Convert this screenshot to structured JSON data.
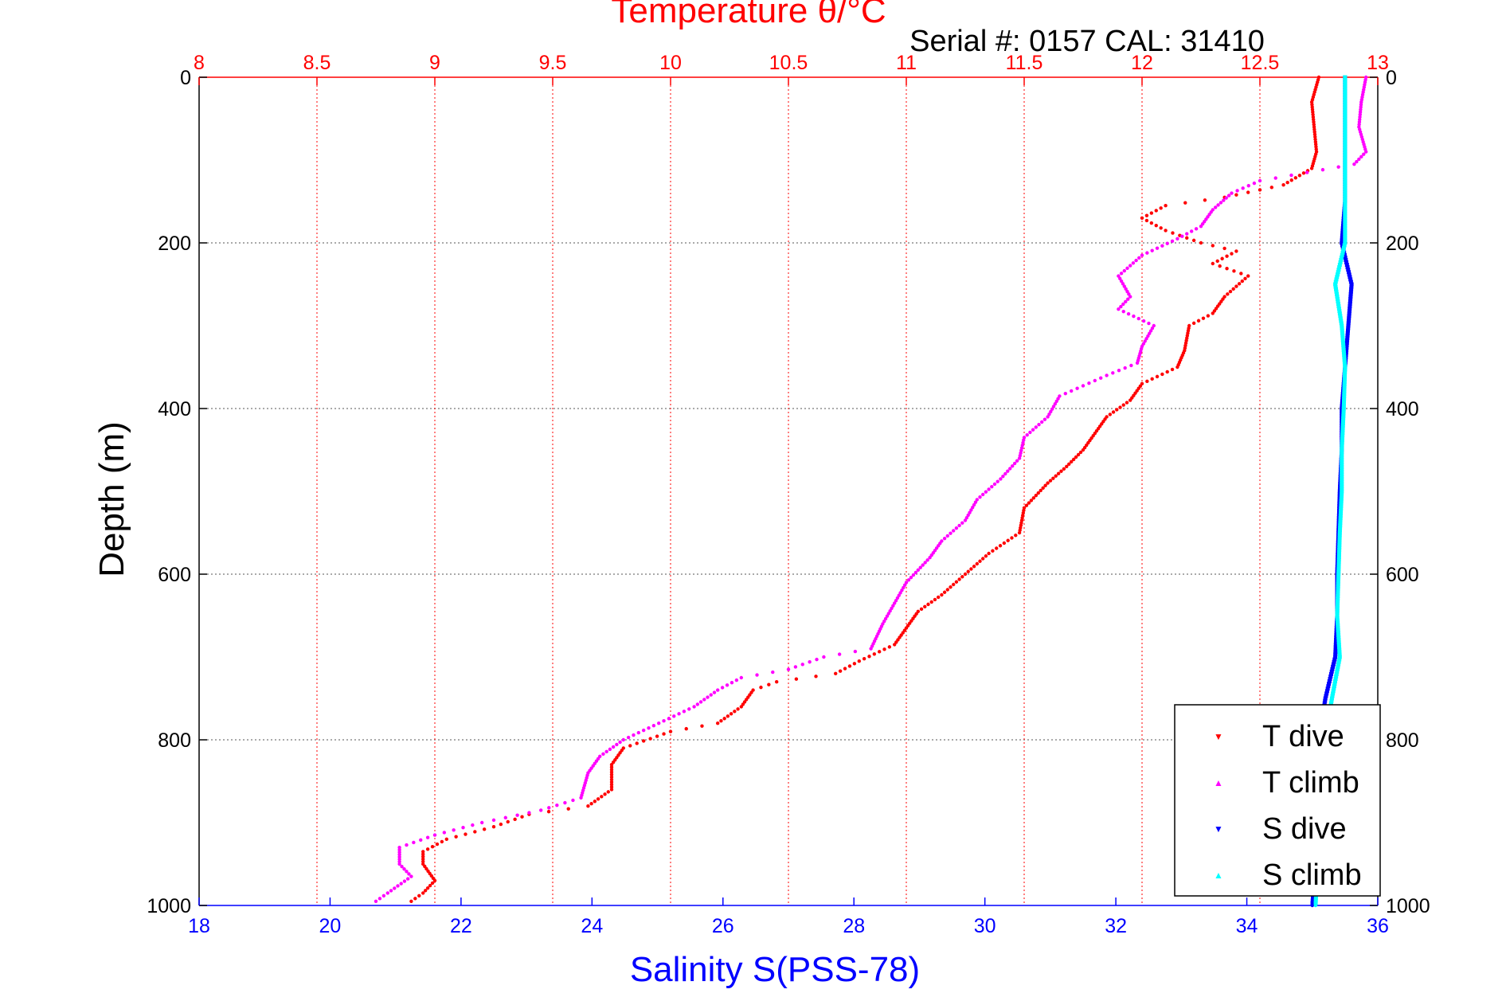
{
  "chart_data": {
    "type": "scatter",
    "title": "Temperature θ/°C",
    "subtitle": "Serial #: 0157  CAL: 31410",
    "ylabel": "Depth (m)",
    "xlabel": "Salinity S(PSS-78)",
    "y_axis": {
      "range": [
        0,
        1000
      ],
      "reversed": true,
      "ticks": [
        0,
        200,
        400,
        600,
        800,
        1000
      ]
    },
    "temperature_axis": {
      "position": "top",
      "range": [
        8,
        13
      ],
      "ticks": [
        "8",
        "8.5",
        "9",
        "9.5",
        "10",
        "10.5",
        "11",
        "11.5",
        "12",
        "12.5",
        "13"
      ],
      "grid": true
    },
    "salinity_axis": {
      "position": "bottom",
      "range": [
        18,
        36
      ],
      "ticks": [
        "18",
        "20",
        "22",
        "24",
        "26",
        "28",
        "30",
        "32",
        "34",
        "36"
      ]
    },
    "grid": {
      "depth_gridlines": true,
      "temperature_gridlines": true
    },
    "legend_position": "bottom-right",
    "colors": {
      "t_dive": "#ff0000",
      "t_climb": "#ff00ff",
      "s_dive": "#0000ff",
      "s_climb": "#00ffff",
      "temp_axis": "#ff0000",
      "sal_axis": "#0000ff"
    },
    "series": [
      {
        "name": "T dive",
        "axis": "temperature",
        "marker": "▼",
        "points": [
          [
            12.75,
            0
          ],
          [
            12.72,
            30
          ],
          [
            12.73,
            60
          ],
          [
            12.74,
            90
          ],
          [
            12.72,
            110
          ],
          [
            12.6,
            130
          ],
          [
            12.35,
            145
          ],
          [
            12.1,
            155
          ],
          [
            12.0,
            170
          ],
          [
            12.1,
            185
          ],
          [
            12.25,
            200
          ],
          [
            12.4,
            210
          ],
          [
            12.3,
            225
          ],
          [
            12.45,
            240
          ],
          [
            12.35,
            265
          ],
          [
            12.3,
            285
          ],
          [
            12.2,
            300
          ],
          [
            12.18,
            330
          ],
          [
            12.15,
            350
          ],
          [
            12.0,
            370
          ],
          [
            11.95,
            390
          ],
          [
            11.85,
            410
          ],
          [
            11.8,
            430
          ],
          [
            11.75,
            450
          ],
          [
            11.68,
            470
          ],
          [
            11.6,
            490
          ],
          [
            11.5,
            520
          ],
          [
            11.48,
            550
          ],
          [
            11.35,
            575
          ],
          [
            11.25,
            600
          ],
          [
            11.15,
            625
          ],
          [
            11.05,
            645
          ],
          [
            11.0,
            665
          ],
          [
            10.95,
            685
          ],
          [
            10.8,
            705
          ],
          [
            10.7,
            720
          ],
          [
            10.45,
            730
          ],
          [
            10.35,
            740
          ],
          [
            10.3,
            760
          ],
          [
            10.2,
            780
          ],
          [
            10.0,
            790
          ],
          [
            9.8,
            810
          ],
          [
            9.75,
            830
          ],
          [
            9.75,
            860
          ],
          [
            9.65,
            880
          ],
          [
            9.4,
            890
          ],
          [
            9.25,
            905
          ],
          [
            9.05,
            920
          ],
          [
            8.95,
            935
          ],
          [
            8.95,
            950
          ],
          [
            9.0,
            970
          ],
          [
            8.95,
            985
          ],
          [
            8.9,
            995
          ]
        ]
      },
      {
        "name": "T climb",
        "axis": "temperature",
        "marker": "▲",
        "points": [
          [
            12.95,
            0
          ],
          [
            12.93,
            30
          ],
          [
            12.92,
            60
          ],
          [
            12.95,
            90
          ],
          [
            12.9,
            105
          ],
          [
            12.7,
            115
          ],
          [
            12.5,
            125
          ],
          [
            12.38,
            140
          ],
          [
            12.3,
            160
          ],
          [
            12.25,
            180
          ],
          [
            12.15,
            195
          ],
          [
            12.0,
            215
          ],
          [
            11.9,
            240
          ],
          [
            11.95,
            265
          ],
          [
            11.9,
            280
          ],
          [
            12.05,
            300
          ],
          [
            12.0,
            325
          ],
          [
            11.98,
            345
          ],
          [
            11.85,
            360
          ],
          [
            11.65,
            385
          ],
          [
            11.6,
            410
          ],
          [
            11.5,
            435
          ],
          [
            11.48,
            460
          ],
          [
            11.4,
            485
          ],
          [
            11.3,
            510
          ],
          [
            11.25,
            535
          ],
          [
            11.15,
            560
          ],
          [
            11.1,
            580
          ],
          [
            11.0,
            610
          ],
          [
            10.95,
            635
          ],
          [
            10.9,
            660
          ],
          [
            10.85,
            690
          ],
          [
            10.65,
            700
          ],
          [
            10.5,
            715
          ],
          [
            10.3,
            725
          ],
          [
            10.2,
            740
          ],
          [
            10.1,
            760
          ],
          [
            9.95,
            780
          ],
          [
            9.8,
            800
          ],
          [
            9.7,
            820
          ],
          [
            9.65,
            840
          ],
          [
            9.62,
            870
          ],
          [
            9.45,
            885
          ],
          [
            9.2,
            900
          ],
          [
            9.0,
            915
          ],
          [
            8.85,
            930
          ],
          [
            8.85,
            950
          ],
          [
            8.9,
            965
          ],
          [
            8.8,
            985
          ],
          [
            8.75,
            995
          ]
        ]
      },
      {
        "name": "S dive",
        "axis": "salinity",
        "marker": "▼",
        "points": [
          [
            35.5,
            0
          ],
          [
            35.5,
            100
          ],
          [
            35.5,
            150
          ],
          [
            35.45,
            200
          ],
          [
            35.6,
            250
          ],
          [
            35.55,
            300
          ],
          [
            35.5,
            350
          ],
          [
            35.45,
            400
          ],
          [
            35.45,
            450
          ],
          [
            35.42,
            500
          ],
          [
            35.4,
            550
          ],
          [
            35.38,
            600
          ],
          [
            35.38,
            650
          ],
          [
            35.35,
            700
          ],
          [
            35.2,
            750
          ],
          [
            35.1,
            800
          ],
          [
            35.1,
            850
          ],
          [
            35.1,
            900
          ],
          [
            35.05,
            950
          ],
          [
            35.0,
            1000
          ]
        ]
      },
      {
        "name": "S climb",
        "axis": "salinity",
        "marker": "▲",
        "points": [
          [
            35.5,
            0
          ],
          [
            35.5,
            100
          ],
          [
            35.5,
            150
          ],
          [
            35.5,
            200
          ],
          [
            35.35,
            250
          ],
          [
            35.45,
            300
          ],
          [
            35.5,
            350
          ],
          [
            35.48,
            400
          ],
          [
            35.45,
            450
          ],
          [
            35.45,
            500
          ],
          [
            35.42,
            550
          ],
          [
            35.4,
            600
          ],
          [
            35.38,
            650
          ],
          [
            35.42,
            700
          ],
          [
            35.3,
            750
          ],
          [
            35.2,
            800
          ],
          [
            35.15,
            850
          ],
          [
            35.1,
            900
          ],
          [
            35.08,
            950
          ],
          [
            35.05,
            1000
          ]
        ]
      }
    ]
  }
}
